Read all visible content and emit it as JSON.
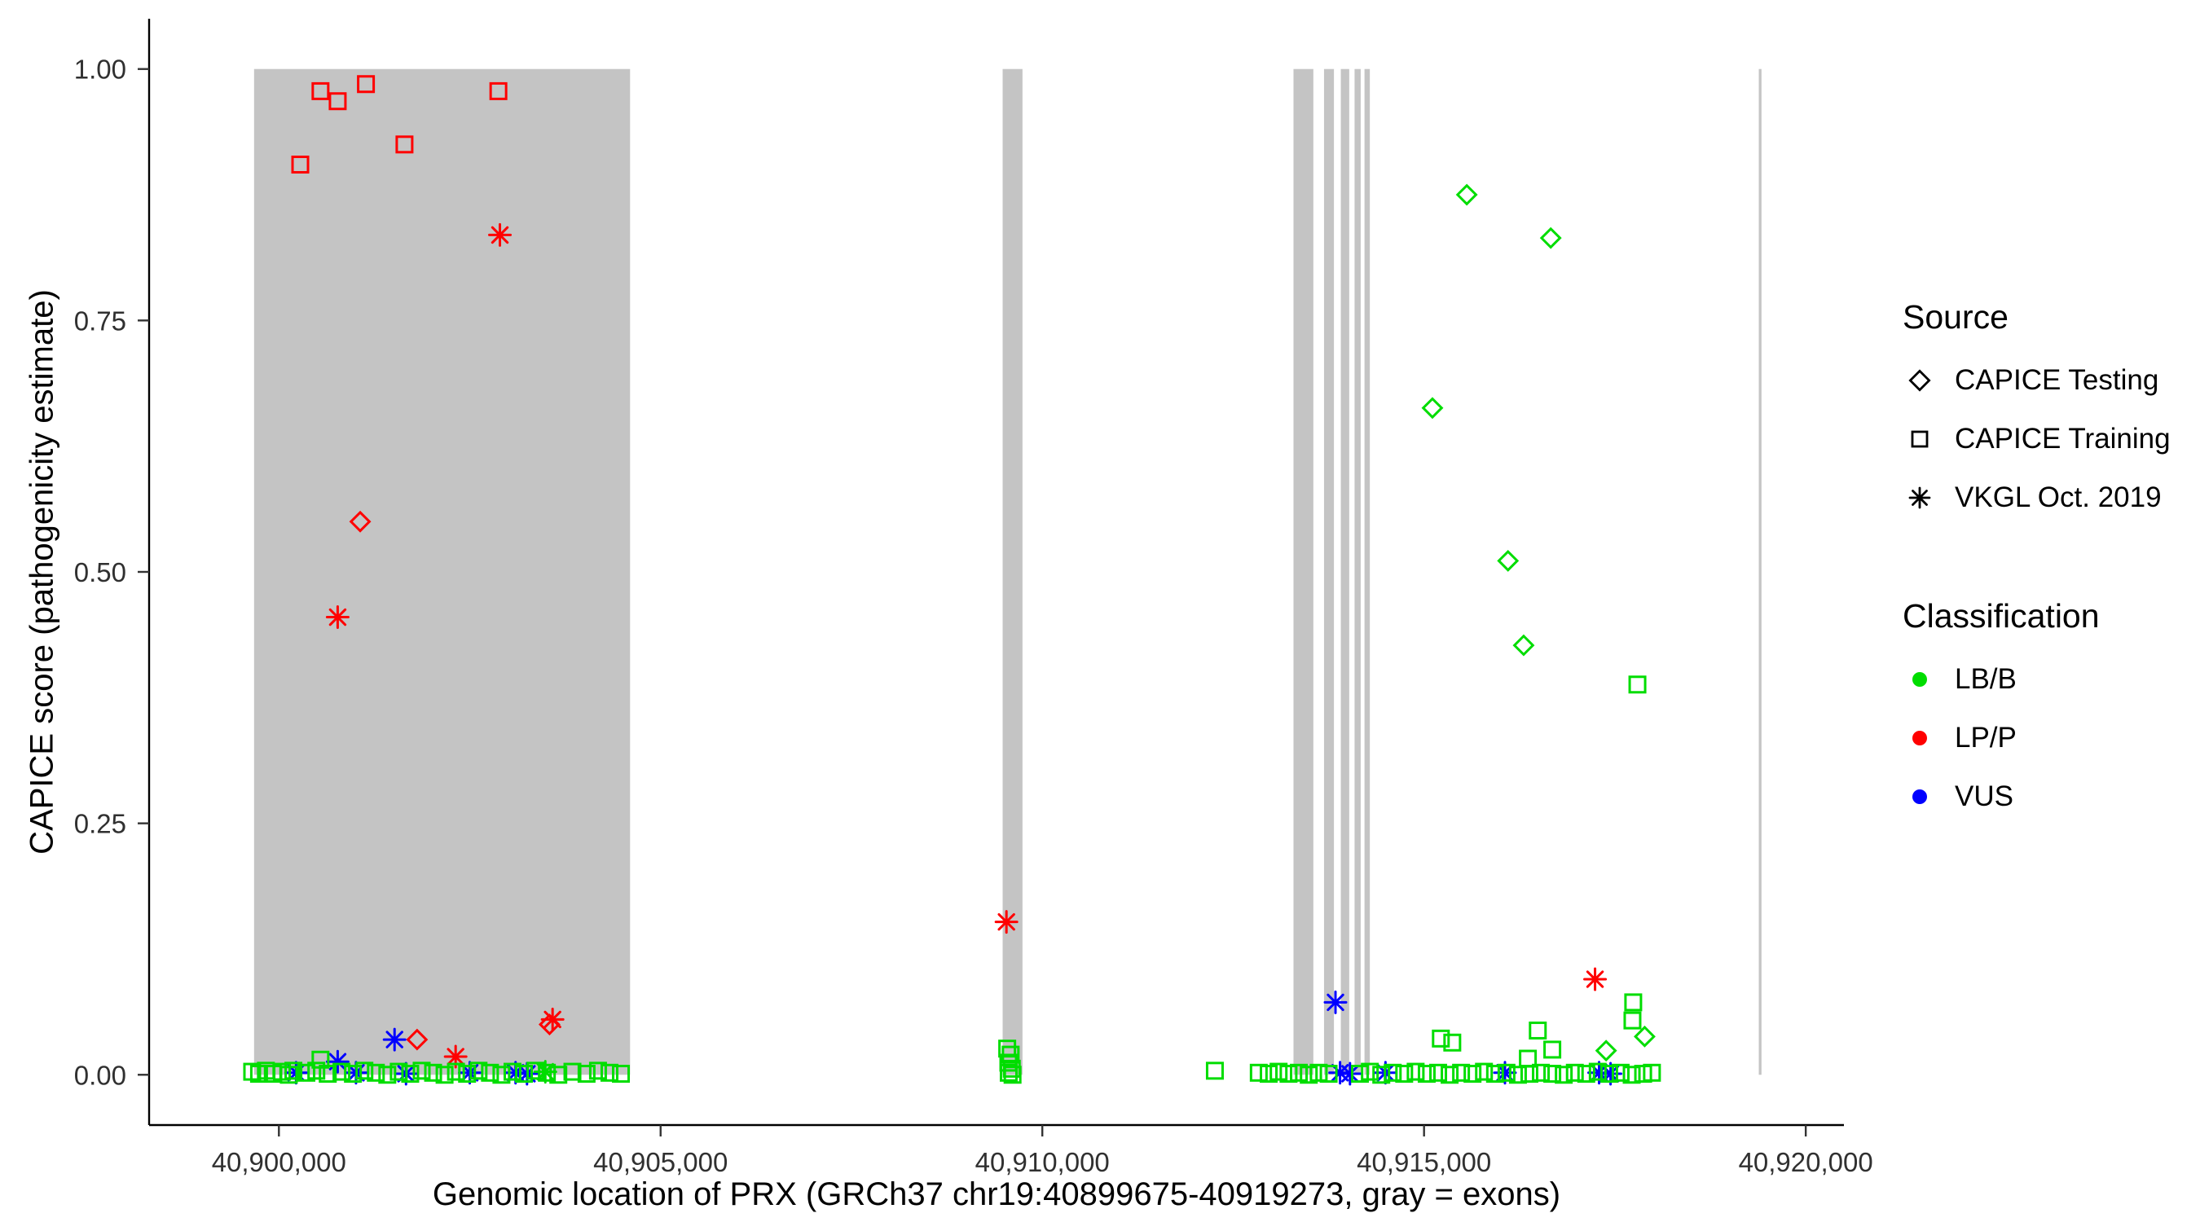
{
  "chart_data": {
    "type": "scatter",
    "title": "",
    "xlabel": "Genomic location of PRX (GRCh37 chr19:40899675-40919273, gray = exons)",
    "ylabel": "CAPICE score (pathogenicity estimate)",
    "x_domain": [
      40898300,
      40920500
    ],
    "y_domain": [
      -0.05,
      1.05
    ],
    "grid": "off",
    "legend_position": "right",
    "x_ticks": [
      {
        "value": 40900000,
        "label": "40,900,000"
      },
      {
        "value": 40905000,
        "label": "40,905,000"
      },
      {
        "value": 40910000,
        "label": "40,910,000"
      },
      {
        "value": 40915000,
        "label": "40,915,000"
      },
      {
        "value": 40920000,
        "label": "40,920,000"
      }
    ],
    "y_ticks": [
      {
        "value": 0,
        "label": "0.00"
      },
      {
        "value": 0.25,
        "label": "0.25"
      },
      {
        "value": 0.5,
        "label": "0.50"
      },
      {
        "value": 0.75,
        "label": "0.75"
      },
      {
        "value": 1,
        "label": "1.00"
      }
    ],
    "exon_color": "#C4C4C4",
    "exon_y_range": [
      0,
      1
    ],
    "exons": [
      [
        40899675,
        40904600
      ],
      [
        40909480,
        40909740
      ],
      [
        40913290,
        40913550
      ],
      [
        40913690,
        40913820
      ],
      [
        40913910,
        40914020
      ],
      [
        40914090,
        40914170
      ],
      [
        40914220,
        40914290
      ],
      [
        40919385,
        40919420
      ]
    ],
    "colors": {
      "LB/B": "#00DD00",
      "LP/P": "#FF0000",
      "VUS": "#0000FF"
    },
    "source_shapes": {
      "testing": "diamond",
      "training": "square",
      "vkgl": "asterisk"
    },
    "point_format": [
      "position",
      "score",
      "source",
      "classification"
    ],
    "points": [
      [
        40900280,
        0.905,
        "training",
        "LP/P"
      ],
      [
        40900545,
        0.978,
        "training",
        "LP/P"
      ],
      [
        40900770,
        0.968,
        "training",
        "LP/P"
      ],
      [
        40901140,
        0.985,
        "training",
        "LP/P"
      ],
      [
        40901645,
        0.925,
        "training",
        "LP/P"
      ],
      [
        40902875,
        0.978,
        "training",
        "LP/P"
      ],
      [
        40902895,
        0.835,
        "vkgl",
        "LP/P"
      ],
      [
        40900770,
        0.455,
        "vkgl",
        "LP/P"
      ],
      [
        40902315,
        0.018,
        "vkgl",
        "LP/P"
      ],
      [
        40903585,
        0.055,
        "vkgl",
        "LP/P"
      ],
      [
        40909530,
        0.152,
        "vkgl",
        "LP/P"
      ],
      [
        40917240,
        0.095,
        "vkgl",
        "LP/P"
      ],
      [
        40901065,
        0.55,
        "testing",
        "LP/P"
      ],
      [
        40901810,
        0.035,
        "testing",
        "LP/P"
      ],
      [
        40903545,
        0.05,
        "testing",
        "LP/P"
      ],
      [
        40901515,
        0.035,
        "vkgl",
        "VUS"
      ],
      [
        40900770,
        0.013,
        "vkgl",
        "VUS"
      ],
      [
        40900225,
        0.002,
        "vkgl",
        "VUS"
      ],
      [
        40901010,
        0.002,
        "vkgl",
        "VUS"
      ],
      [
        40901665,
        0.001,
        "vkgl",
        "VUS"
      ],
      [
        40902500,
        0.002,
        "vkgl",
        "VUS"
      ],
      [
        40903100,
        0.002,
        "vkgl",
        "VUS"
      ],
      [
        40903250,
        0.001,
        "vkgl",
        "VUS"
      ],
      [
        40913840,
        0.072,
        "vkgl",
        "VUS"
      ],
      [
        40913900,
        0.002,
        "vkgl",
        "VUS"
      ],
      [
        40914030,
        0.001,
        "vkgl",
        "VUS"
      ],
      [
        40914495,
        0.002,
        "vkgl",
        "VUS"
      ],
      [
        40916060,
        0.002,
        "vkgl",
        "VUS"
      ],
      [
        40917293,
        0.002,
        "vkgl",
        "VUS"
      ],
      [
        40917443,
        0.001,
        "vkgl",
        "VUS"
      ],
      [
        40915560,
        0.875,
        "testing",
        "LB/B"
      ],
      [
        40916660,
        0.832,
        "testing",
        "LB/B"
      ],
      [
        40915110,
        0.663,
        "testing",
        "LB/B"
      ],
      [
        40916100,
        0.511,
        "testing",
        "LB/B"
      ],
      [
        40916305,
        0.427,
        "testing",
        "LB/B"
      ],
      [
        40917385,
        0.024,
        "testing",
        "LB/B"
      ],
      [
        40917890,
        0.038,
        "testing",
        "LB/B"
      ],
      [
        40903490,
        0.003,
        "vkgl",
        "LB/B"
      ],
      [
        40917795,
        0.388,
        "training",
        "LB/B"
      ],
      [
        40917740,
        0.072,
        "training",
        "LB/B"
      ],
      [
        40917730,
        0.054,
        "training",
        "LB/B"
      ],
      [
        40916490,
        0.044,
        "training",
        "LB/B"
      ],
      [
        40915220,
        0.036,
        "training",
        "LB/B"
      ],
      [
        40915370,
        0.032,
        "training",
        "LB/B"
      ],
      [
        40916680,
        0.025,
        "training",
        "LB/B"
      ],
      [
        40916360,
        0.016,
        "training",
        "LB/B"
      ],
      [
        40900545,
        0.015,
        "training",
        "LB/B"
      ],
      [
        40909540,
        0.026,
        "training",
        "LB/B"
      ],
      [
        40909585,
        0.02,
        "training",
        "LB/B"
      ],
      [
        40909555,
        0.012,
        "training",
        "LB/B"
      ],
      [
        40909600,
        0.006,
        "training",
        "LB/B"
      ],
      [
        40909560,
        0.002,
        "training",
        "LB/B"
      ],
      [
        40909610,
        0,
        "training",
        "LB/B"
      ],
      [
        40899650,
        0.003,
        "training",
        "LB/B"
      ],
      [
        40899740,
        0.001,
        "training",
        "LB/B"
      ],
      [
        40899830,
        0.004,
        "training",
        "LB/B"
      ],
      [
        40899920,
        0.001,
        "training",
        "LB/B"
      ],
      [
        40900040,
        0.003,
        "training",
        "LB/B"
      ],
      [
        40900130,
        0,
        "training",
        "LB/B"
      ],
      [
        40900190,
        0.004,
        "training",
        "LB/B"
      ],
      [
        40900360,
        0.002,
        "training",
        "LB/B"
      ],
      [
        40900490,
        0.004,
        "training",
        "LB/B"
      ],
      [
        40900640,
        0.001,
        "training",
        "LB/B"
      ],
      [
        40900820,
        0.003,
        "training",
        "LB/B"
      ],
      [
        40900970,
        0.001,
        "training",
        "LB/B"
      ],
      [
        40901120,
        0.004,
        "training",
        "LB/B"
      ],
      [
        40901270,
        0.002,
        "training",
        "LB/B"
      ],
      [
        40901420,
        0,
        "training",
        "LB/B"
      ],
      [
        40901570,
        0.003,
        "training",
        "LB/B"
      ],
      [
        40901720,
        0.001,
        "training",
        "LB/B"
      ],
      [
        40901870,
        0.004,
        "training",
        "LB/B"
      ],
      [
        40902020,
        0.002,
        "training",
        "LB/B"
      ],
      [
        40902170,
        0,
        "training",
        "LB/B"
      ],
      [
        40902320,
        0.003,
        "training",
        "LB/B"
      ],
      [
        40902465,
        0.001,
        "training",
        "LB/B"
      ],
      [
        40902615,
        0.004,
        "training",
        "LB/B"
      ],
      [
        40902765,
        0.002,
        "training",
        "LB/B"
      ],
      [
        40902915,
        0,
        "training",
        "LB/B"
      ],
      [
        40903060,
        0.003,
        "training",
        "LB/B"
      ],
      [
        40903210,
        0.001,
        "training",
        "LB/B"
      ],
      [
        40903360,
        0.004,
        "training",
        "LB/B"
      ],
      [
        40903510,
        0.002,
        "training",
        "LB/B"
      ],
      [
        40903660,
        0,
        "training",
        "LB/B"
      ],
      [
        40903845,
        0.003,
        "training",
        "LB/B"
      ],
      [
        40904030,
        0.001,
        "training",
        "LB/B"
      ],
      [
        40904180,
        0.004,
        "training",
        "LB/B"
      ],
      [
        40904330,
        0.002,
        "training",
        "LB/B"
      ],
      [
        40904480,
        0.001,
        "training",
        "LB/B"
      ],
      [
        40912260,
        0.004,
        "training",
        "LB/B"
      ],
      [
        40912835,
        0.002,
        "training",
        "LB/B"
      ],
      [
        40912965,
        0.001,
        "training",
        "LB/B"
      ],
      [
        40913095,
        0.003,
        "training",
        "LB/B"
      ],
      [
        40913225,
        0.001,
        "training",
        "LB/B"
      ],
      [
        40913360,
        0.002,
        "training",
        "LB/B"
      ],
      [
        40913490,
        0,
        "training",
        "LB/B"
      ],
      [
        40913620,
        0.002,
        "training",
        "LB/B"
      ],
      [
        40913750,
        0.001,
        "training",
        "LB/B"
      ],
      [
        40914160,
        0.001,
        "training",
        "LB/B"
      ],
      [
        40914290,
        0.003,
        "training",
        "LB/B"
      ],
      [
        40914440,
        0,
        "training",
        "LB/B"
      ],
      [
        40914590,
        0.002,
        "training",
        "LB/B"
      ],
      [
        40914740,
        0.001,
        "training",
        "LB/B"
      ],
      [
        40914890,
        0.003,
        "training",
        "LB/B"
      ],
      [
        40915035,
        0.001,
        "training",
        "LB/B"
      ],
      [
        40915185,
        0.002,
        "training",
        "LB/B"
      ],
      [
        40915335,
        0,
        "training",
        "LB/B"
      ],
      [
        40915485,
        0.002,
        "training",
        "LB/B"
      ],
      [
        40915635,
        0.001,
        "training",
        "LB/B"
      ],
      [
        40915785,
        0.003,
        "training",
        "LB/B"
      ],
      [
        40915930,
        0.001,
        "training",
        "LB/B"
      ],
      [
        40916080,
        0.002,
        "training",
        "LB/B"
      ],
      [
        40916230,
        0,
        "training",
        "LB/B"
      ],
      [
        40916380,
        0.001,
        "training",
        "LB/B"
      ],
      [
        40916530,
        0.002,
        "training",
        "LB/B"
      ],
      [
        40916680,
        0.001,
        "training",
        "LB/B"
      ],
      [
        40916830,
        0,
        "training",
        "LB/B"
      ],
      [
        40916975,
        0.002,
        "training",
        "LB/B"
      ],
      [
        40917125,
        0.001,
        "training",
        "LB/B"
      ],
      [
        40917275,
        0.003,
        "training",
        "LB/B"
      ],
      [
        40917425,
        0.001,
        "training",
        "LB/B"
      ],
      [
        40917575,
        0.002,
        "training",
        "LB/B"
      ],
      [
        40917720,
        0,
        "training",
        "LB/B"
      ],
      [
        40917870,
        0.001,
        "training",
        "LB/B"
      ],
      [
        40917985,
        0.002,
        "training",
        "LB/B"
      ]
    ]
  },
  "axis": {
    "x_title": "Genomic location of PRX (GRCh37 chr19:40899675-40919273, gray = exons)",
    "y_title": "CAPICE score (pathogenicity estimate)"
  },
  "legend": {
    "source_title": "Source",
    "source_items": [
      {
        "label": "CAPICE Testing",
        "shape": "diamond"
      },
      {
        "label": "CAPICE Training",
        "shape": "square"
      },
      {
        "label": "VKGL Oct. 2019",
        "shape": "asterisk"
      }
    ],
    "classification_title": "Classification",
    "class_items": [
      {
        "label": "LB/B",
        "color": "#00DD00"
      },
      {
        "label": "LP/P",
        "color": "#FF0000"
      },
      {
        "label": "VUS",
        "color": "#0000FF"
      }
    ]
  }
}
